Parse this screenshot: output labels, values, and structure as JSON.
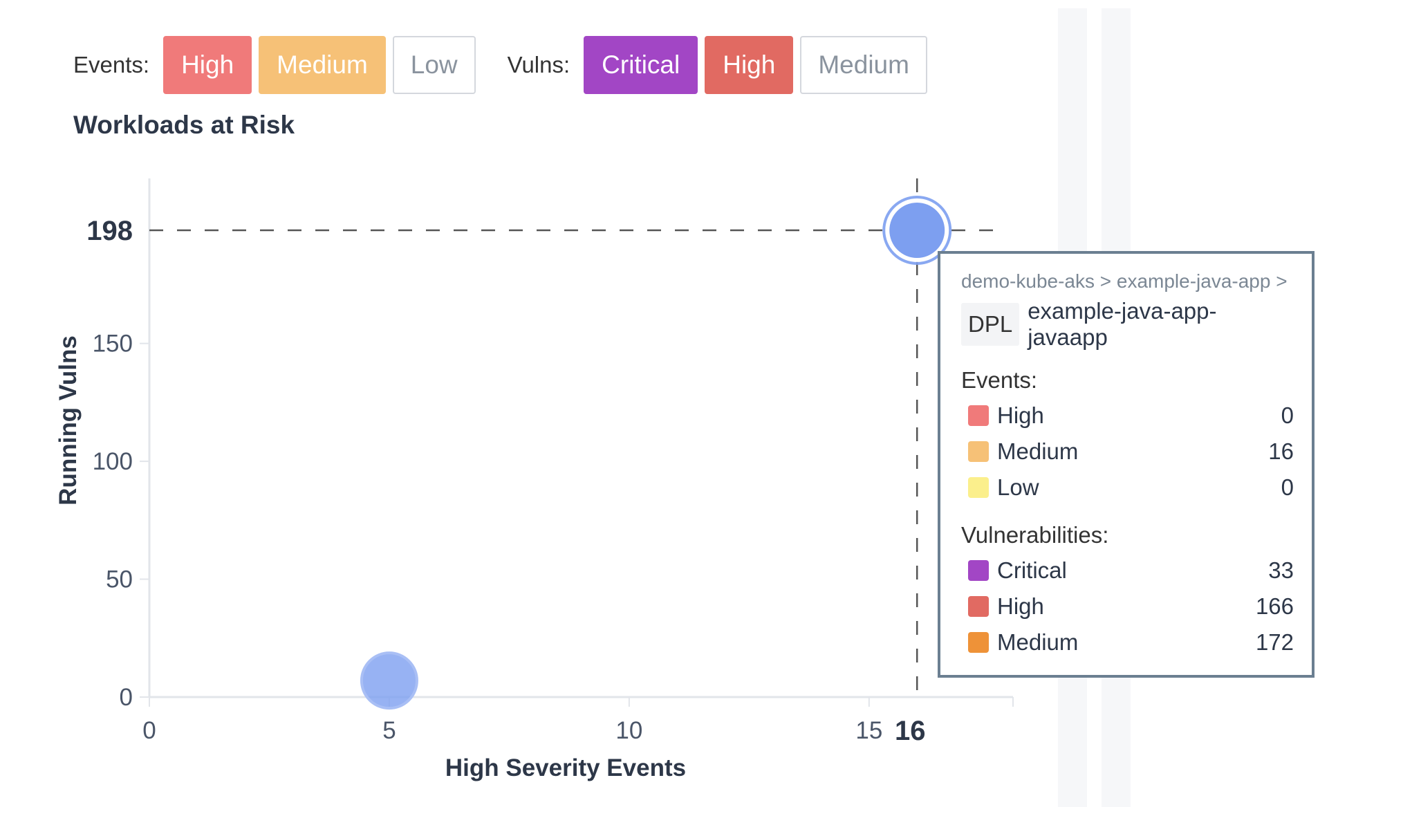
{
  "filters": {
    "events_label": "Events:",
    "events": [
      {
        "label": "High",
        "bg": "#f07a7a",
        "fg": "#ffffff",
        "active": true
      },
      {
        "label": "Medium",
        "bg": "#f6c177",
        "fg": "#ffffff",
        "active": true
      },
      {
        "label": "Low",
        "bg": "#ffffff",
        "fg": "#8a939e",
        "active": false
      }
    ],
    "vulns_label": "Vulns:",
    "vulns": [
      {
        "label": "Critical",
        "bg": "#a246c5",
        "fg": "#ffffff",
        "active": true
      },
      {
        "label": "High",
        "bg": "#e16a62",
        "fg": "#ffffff",
        "active": true
      },
      {
        "label": "Medium",
        "bg": "#ffffff",
        "fg": "#8a939e",
        "active": false
      }
    ]
  },
  "chart_title": "Workloads at Risk",
  "chart_data": {
    "type": "scatter",
    "title": "Workloads at Risk",
    "xlabel": "High Severity Events",
    "ylabel": "Running Vulns",
    "xlim": [
      0,
      18
    ],
    "ylim": [
      0,
      220
    ],
    "x_ticks": [
      0,
      5,
      10,
      15
    ],
    "y_ticks": [
      0,
      50,
      100,
      150
    ],
    "points": [
      {
        "x": 5,
        "y": 7,
        "highlighted": false
      },
      {
        "x": 16,
        "y": 198,
        "highlighted": true
      }
    ],
    "crosshair": {
      "x": 16,
      "y": 198
    },
    "point_color": "#7d9ff0",
    "grid": false
  },
  "tooltip": {
    "path": "demo-kube-aks > example-java-app >",
    "kind": "DPL",
    "name": "example-java-app-javaapp",
    "events_label": "Events:",
    "events": [
      {
        "label": "High",
        "value": "0",
        "color": "#f07a7a"
      },
      {
        "label": "Medium",
        "value": "16",
        "color": "#f6c177"
      },
      {
        "label": "Low",
        "value": "0",
        "color": "#fbef8c"
      }
    ],
    "vulns_label": "Vulnerabilities:",
    "vulns": [
      {
        "label": "Critical",
        "value": "33",
        "color": "#a246c5"
      },
      {
        "label": "High",
        "value": "166",
        "color": "#e16a62"
      },
      {
        "label": "Medium",
        "value": "172",
        "color": "#ee9238"
      }
    ]
  }
}
